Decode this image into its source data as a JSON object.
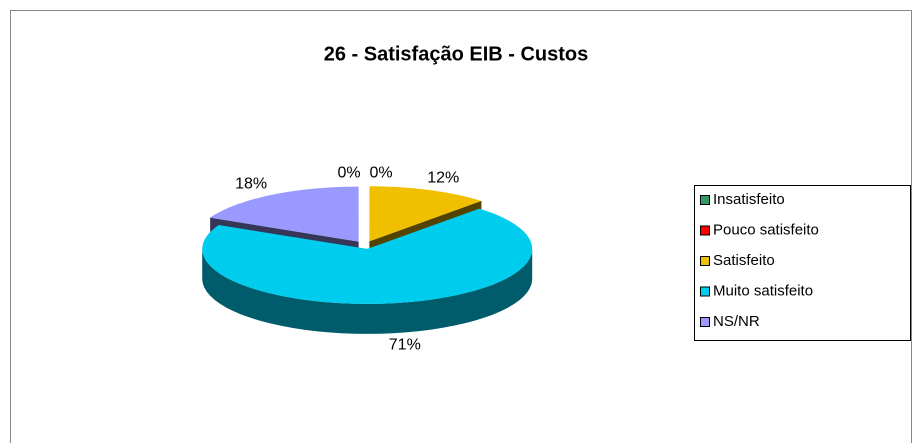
{
  "chart_data": {
    "type": "pie3d",
    "title": "26 - Satisfação EIB - Custos",
    "categories": [
      "Insatisfeito",
      "Pouco satisfeito",
      "Satisfeito",
      "Muito satisfeito",
      "NS/NR"
    ],
    "values": [
      0,
      0,
      12,
      71,
      18
    ],
    "value_labels": [
      "0%",
      "0%",
      "12%",
      "71%",
      "18%"
    ],
    "colors": [
      "#339966",
      "#ff0000",
      "#f0c000",
      "#00ccee",
      "#9999ff"
    ],
    "legend": "right"
  }
}
